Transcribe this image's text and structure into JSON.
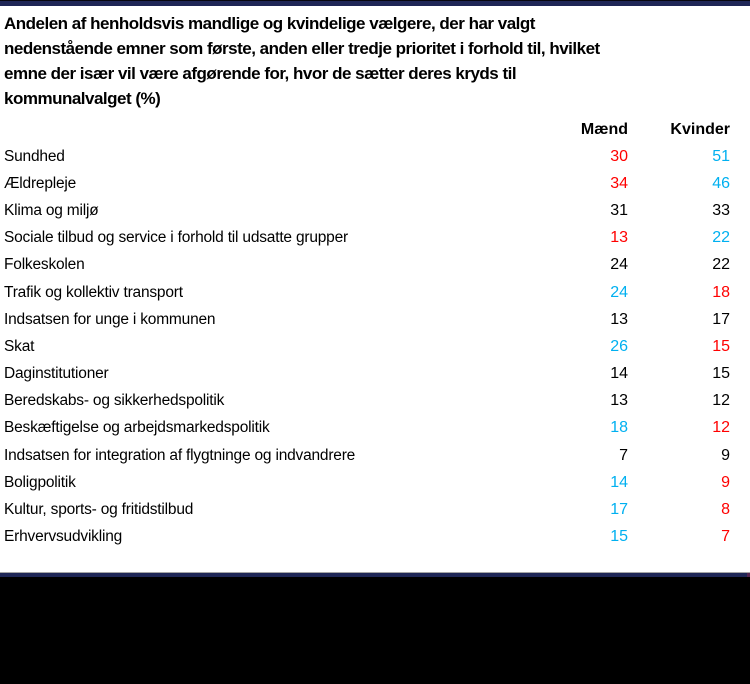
{
  "title": {
    "lines": [
      "Andelen af henholdsvis mandlige og kvindelige vælgere, der har valgt",
      "nedenstående emner som første, anden eller tredje prioritet i forhold til, hvilket",
      "emne der især vil være afgørende for, hvor de sætter deres kryds til",
      "kommunalvalget (%)"
    ]
  },
  "colors": {
    "red": "#FF0000",
    "blue": "#00B0F0",
    "black": "#000000",
    "navy": "#1E2656",
    "gray_line": "#A6A6A6",
    "footer_black": "#000000"
  },
  "chart_data": {
    "type": "table",
    "title": "Andelen af henholdsvis mandlige og kvindelige vælgere, der har valgt nedenstående emner som første, anden eller tredje prioritet i forhold til, hvilket emne der især vil være afgørende for, hvor de sætter deres kryds til kommunalvalget (%)",
    "categories": [
      "Sundhed",
      "Ældrepleje",
      "Klima og miljø",
      "Sociale tilbud og service i forhold til udsatte grupper",
      "Folkeskolen",
      "Trafik og kollektiv transport",
      "Indsatsen for unge i kommunen",
      "Skat",
      "Daginstitutioner",
      "Beredskabs- og sikkerhedspolitik",
      "Beskæftigelse og arbejdsmarkedspolitik",
      "Indsatsen for integration af flygtninge og indvandrere",
      "Boligpolitik",
      "Kultur, sports- og fritidstilbud",
      "Erhvervsudvikling"
    ],
    "series": [
      {
        "name": "Mænd",
        "values": [
          30,
          34,
          31,
          13,
          24,
          24,
          13,
          26,
          14,
          13,
          18,
          7,
          14,
          17,
          15
        ],
        "value_colors": [
          "red",
          "red",
          "black",
          "red",
          "black",
          "blue",
          "black",
          "blue",
          "black",
          "black",
          "blue",
          "black",
          "blue",
          "blue",
          "blue"
        ]
      },
      {
        "name": "Kvinder",
        "values": [
          51,
          46,
          33,
          22,
          22,
          18,
          17,
          15,
          15,
          12,
          12,
          9,
          9,
          8,
          7
        ],
        "value_colors": [
          "blue",
          "blue",
          "black",
          "blue",
          "black",
          "red",
          "black",
          "red",
          "black",
          "black",
          "red",
          "black",
          "red",
          "red",
          "red"
        ]
      }
    ],
    "legend_position": "none",
    "grid": false
  }
}
